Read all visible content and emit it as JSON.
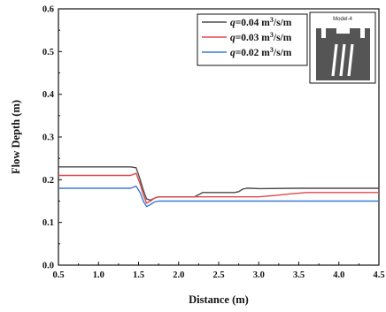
{
  "chart_data": {
    "type": "line",
    "xlabel": "Distance (m)",
    "ylabel": "Flow Depth (m)",
    "xlim": [
      0.5,
      4.5
    ],
    "ylim": [
      0.0,
      0.6
    ],
    "xticks": [
      "0.5",
      "1.0",
      "1.5",
      "2.0",
      "2.5",
      "3.0",
      "3.5",
      "4.0",
      "4.5"
    ],
    "yticks": [
      "0.0",
      "0.1",
      "0.2",
      "0.3",
      "0.4",
      "0.5",
      "0.6"
    ],
    "grid": false,
    "legend_position": "top-right",
    "inset_label": "Model-4",
    "series": [
      {
        "name": "q=0.04 m³/s/m",
        "name_var": "q",
        "name_rest": "=0.04 m",
        "name_sup": "3",
        "name_tail": "/s/m",
        "color": "#4a4a4a",
        "x": [
          0.5,
          1.0,
          1.4,
          1.47,
          1.52,
          1.56,
          1.6,
          1.65,
          1.7,
          1.75,
          1.8,
          2.0,
          2.2,
          2.25,
          2.3,
          2.5,
          2.7,
          2.75,
          2.8,
          2.85,
          2.9,
          3.0,
          3.5,
          4.0,
          4.5
        ],
        "y": [
          0.23,
          0.23,
          0.23,
          0.228,
          0.2,
          0.175,
          0.155,
          0.152,
          0.157,
          0.16,
          0.16,
          0.16,
          0.16,
          0.165,
          0.17,
          0.17,
          0.17,
          0.172,
          0.178,
          0.18,
          0.18,
          0.179,
          0.18,
          0.18,
          0.18
        ]
      },
      {
        "name": "q=0.03 m³/s/m",
        "name_var": "q",
        "name_rest": "=0.03 m",
        "name_sup": "3",
        "name_tail": "/s/m",
        "color": "#e0474c",
        "x": [
          0.5,
          1.0,
          1.4,
          1.47,
          1.52,
          1.56,
          1.6,
          1.65,
          1.7,
          1.75,
          1.8,
          2.0,
          2.5,
          3.0,
          3.2,
          3.4,
          3.6,
          4.0,
          4.5
        ],
        "y": [
          0.21,
          0.21,
          0.21,
          0.215,
          0.19,
          0.165,
          0.145,
          0.15,
          0.157,
          0.16,
          0.16,
          0.16,
          0.16,
          0.16,
          0.163,
          0.167,
          0.17,
          0.17,
          0.17
        ]
      },
      {
        "name": "q=0.02 m³/s/m",
        "name_var": "q",
        "name_rest": "=0.02 m",
        "name_sup": "3",
        "name_tail": "/s/m",
        "color": "#3b7bd4",
        "x": [
          0.5,
          1.0,
          1.4,
          1.47,
          1.52,
          1.56,
          1.6,
          1.65,
          1.7,
          1.75,
          1.8,
          2.0,
          2.5,
          3.0,
          3.5,
          4.0,
          4.5
        ],
        "y": [
          0.18,
          0.18,
          0.18,
          0.185,
          0.17,
          0.15,
          0.137,
          0.142,
          0.148,
          0.15,
          0.15,
          0.15,
          0.15,
          0.15,
          0.15,
          0.15,
          0.15
        ]
      }
    ]
  }
}
